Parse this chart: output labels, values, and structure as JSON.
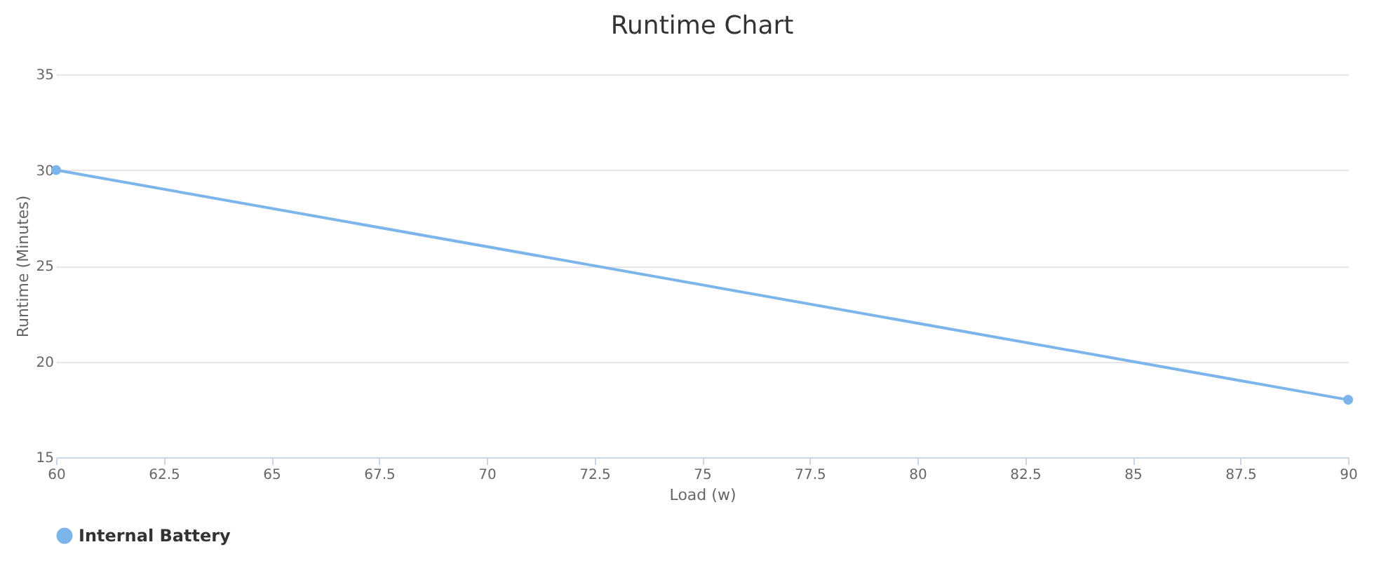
{
  "chart_data": {
    "type": "line",
    "title": "Runtime Chart",
    "xlabel": "Load (w)",
    "ylabel": "Runtime (Minutes)",
    "x": [
      60,
      90
    ],
    "series": [
      {
        "name": "Internal Battery",
        "color": "#7cb5ec",
        "values": [
          30,
          18
        ]
      }
    ],
    "xlim": [
      60,
      90
    ],
    "xticks": [
      60,
      62.5,
      65,
      67.5,
      70,
      72.5,
      75,
      77.5,
      80,
      82.5,
      85,
      87.5,
      90
    ],
    "ylim": [
      15,
      35
    ],
    "yticks": [
      15,
      20,
      25,
      30,
      35
    ],
    "grid": "y",
    "legend": "bottom",
    "marker": "circle",
    "line_style": "solid"
  }
}
